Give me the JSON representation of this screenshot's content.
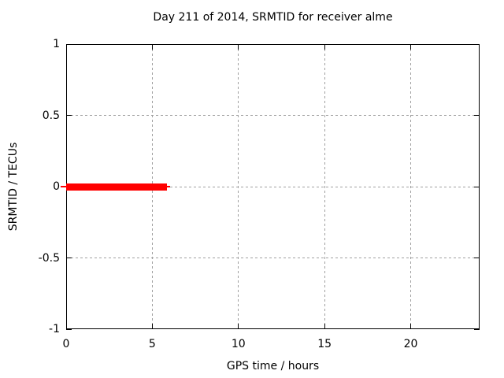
{
  "chart_data": {
    "type": "line",
    "title": "Day 211 of 2014, SRMTID for receiver alme",
    "xlabel": "GPS time / hours",
    "ylabel": "SRMTID / TECUs",
    "xlim": [
      0,
      24
    ],
    "ylim": [
      -1,
      1
    ],
    "xticks": [
      {
        "value": 0,
        "label": "0"
      },
      {
        "value": 5,
        "label": "5"
      },
      {
        "value": 10,
        "label": "10"
      },
      {
        "value": 15,
        "label": "15"
      },
      {
        "value": 20,
        "label": "20"
      }
    ],
    "yticks": [
      {
        "value": 1,
        "label": "1"
      },
      {
        "value": 0.5,
        "label": "0.5"
      },
      {
        "value": 0,
        "label": "0"
      },
      {
        "value": -0.5,
        "label": "-0.5"
      },
      {
        "value": -1,
        "label": "-1"
      }
    ],
    "grid": {
      "x_values": [
        5,
        10,
        15,
        20
      ],
      "y_values": [
        0.5,
        0,
        -0.5
      ],
      "style": "dashed",
      "color": "#a0a0a0"
    },
    "legend": "none",
    "series": [
      {
        "name": "SRMTID",
        "color": "#ff0000",
        "segments": [
          {
            "x_start": 0,
            "x_end": 5.85,
            "y": 0
          }
        ]
      }
    ]
  },
  "colors": {
    "background": "#ffffff",
    "border": "#000000",
    "text": "#000000",
    "grid": "#a0a0a0",
    "series": "#ff0000"
  }
}
